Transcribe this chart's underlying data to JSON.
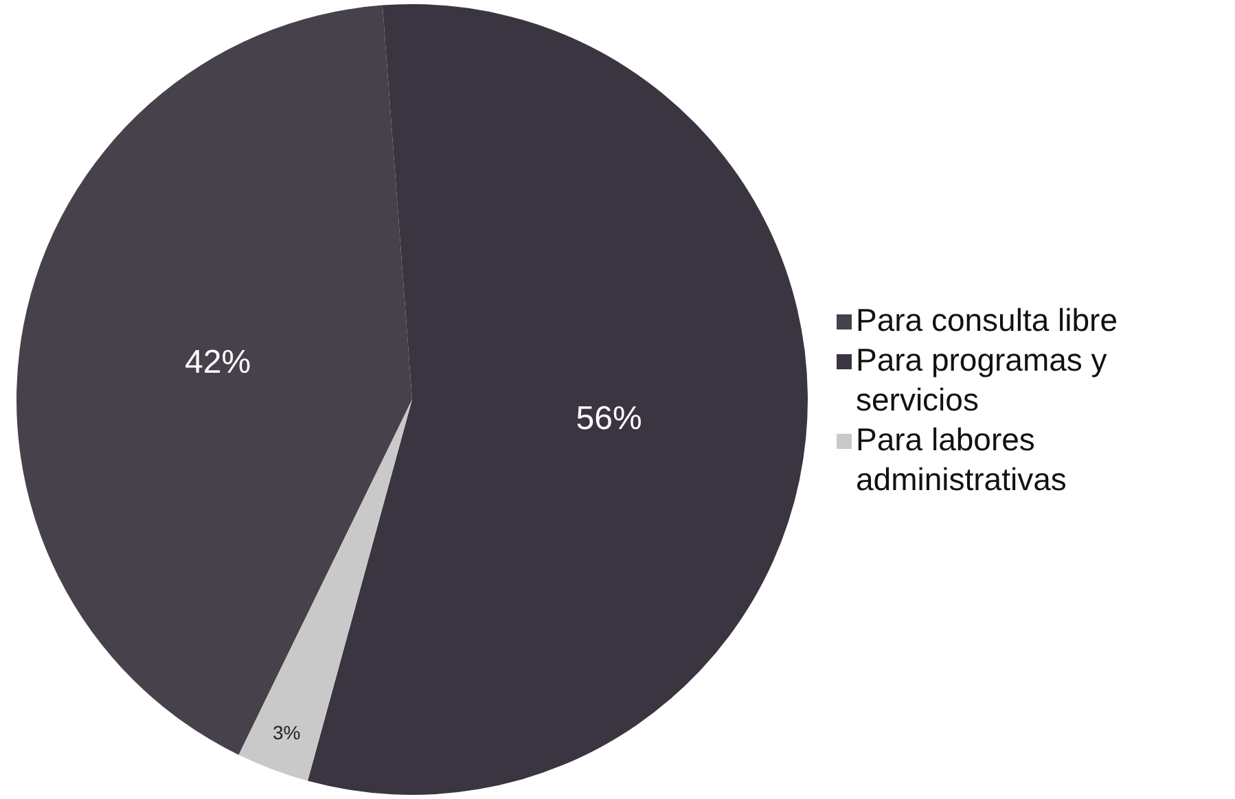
{
  "chart_data": {
    "type": "pie",
    "categories": [
      "Para consulta libre",
      "Para programas y servicios",
      "Para labores administrativas"
    ],
    "values": [
      42,
      56,
      3
    ],
    "value_labels": [
      "42%",
      "56%",
      "3%"
    ],
    "colors": [
      "#47414c",
      "#3a3540",
      "#c9c9c9"
    ],
    "legend": "right"
  }
}
